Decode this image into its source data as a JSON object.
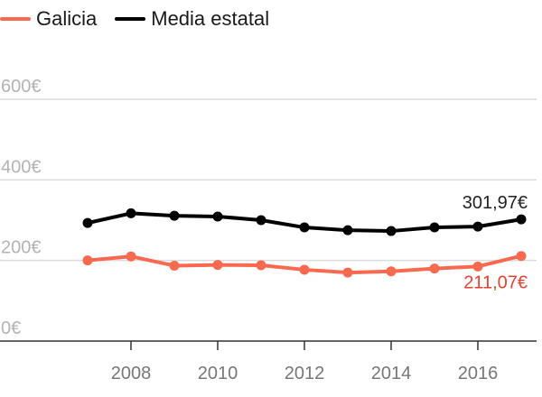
{
  "chart_data": {
    "type": "line",
    "x": [
      2007,
      2008,
      2009,
      2010,
      2011,
      2012,
      2013,
      2014,
      2015,
      2016,
      2017
    ],
    "series": [
      {
        "name": "Galicia",
        "color": "#f9694f",
        "values": [
          200,
          210,
          187,
          189,
          188,
          177,
          170,
          173,
          180,
          185,
          211.07
        ]
      },
      {
        "name": "Media estatal",
        "color": "#000000",
        "values": [
          293,
          317,
          311,
          309,
          300,
          282,
          275,
          273,
          282,
          284,
          301.97
        ]
      }
    ],
    "y_ticks": [
      "600€",
      "400€",
      "200€",
      "0€"
    ],
    "y_tick_values": [
      600,
      400,
      200,
      0
    ],
    "x_ticks": [
      "2008",
      "2010",
      "2012",
      "2014",
      "2016"
    ],
    "x_tick_values": [
      2008,
      2010,
      2012,
      2014,
      2016
    ],
    "end_labels": [
      {
        "series": "Media estatal",
        "text": "301,97€",
        "color": "#222222"
      },
      {
        "series": "Galicia",
        "text": "211,07€",
        "color": "#e8412f"
      }
    ],
    "ylim": [
      0,
      600
    ],
    "xlim": [
      2007,
      2017
    ],
    "grid": true,
    "legend_position": "top-left",
    "title": "",
    "xlabel": "",
    "ylabel": ""
  }
}
